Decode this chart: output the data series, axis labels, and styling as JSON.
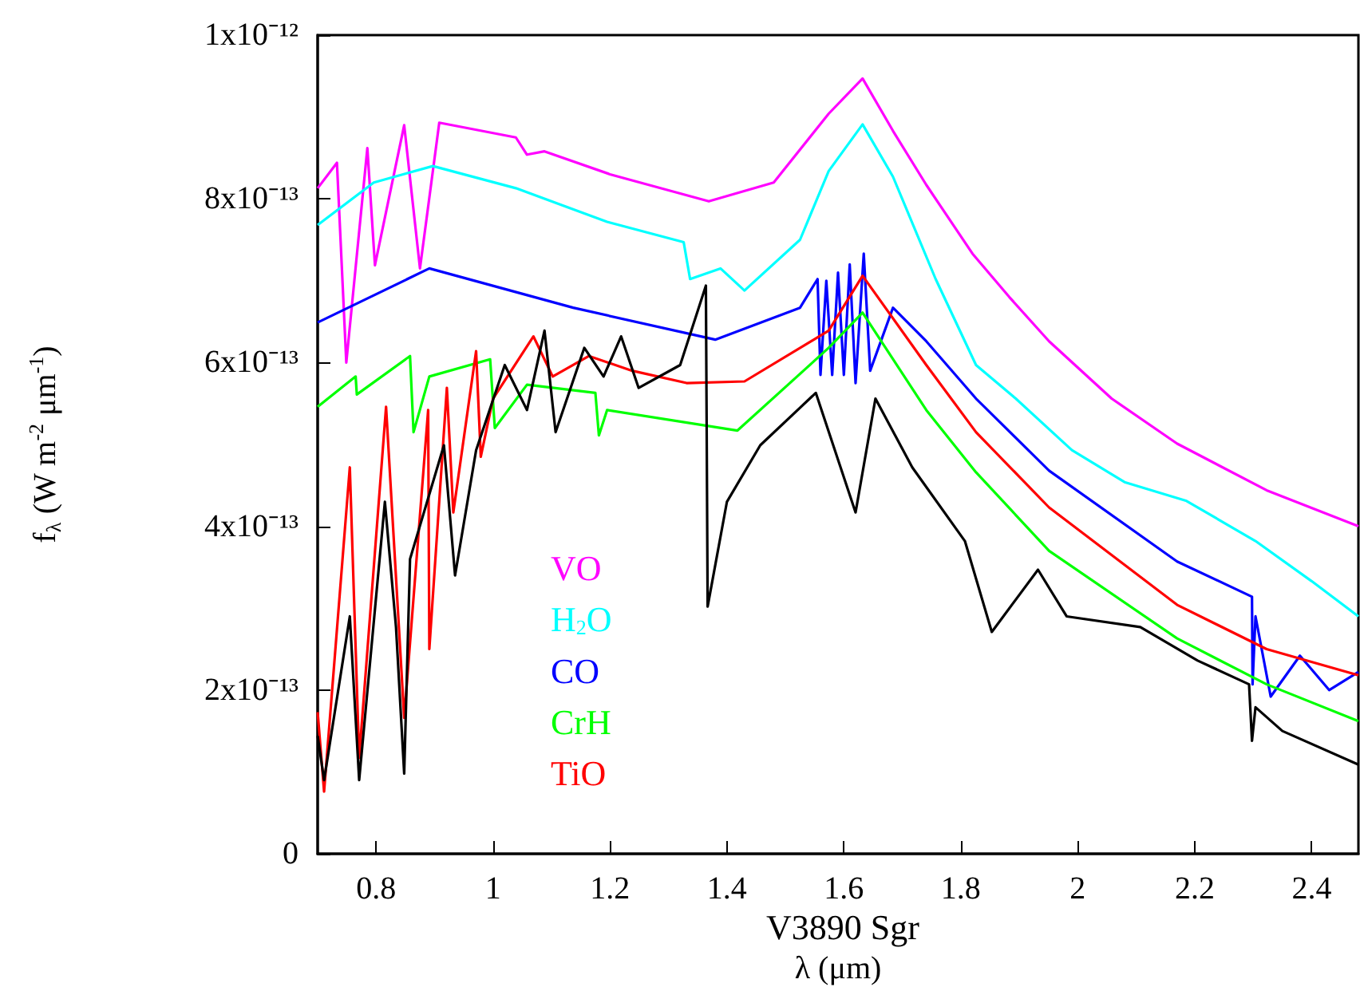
{
  "chart_data": {
    "type": "line",
    "xlabel": "λ (μm)",
    "ylabel": "f$_{λ}$ (W m$^{-2}$ μm$^{-1}$)",
    "xlim": [
      0.7,
      2.48
    ],
    "xticks": [
      0.8,
      1,
      1.2,
      1.4,
      1.6,
      1.8,
      2,
      2.2,
      2.4
    ],
    "ylim": [
      0,
      1e-12
    ],
    "yticks": [
      {
        "value": 0,
        "label": "0"
      },
      {
        "value": 2e-13,
        "label": "2x10⁻¹³"
      },
      {
        "value": 4e-13,
        "label": "4x10⁻¹³"
      },
      {
        "value": 6e-13,
        "label": "6x10⁻¹³"
      },
      {
        "value": 8e-13,
        "label": "8x10⁻¹³"
      },
      {
        "value": 1e-12,
        "label": "1x10⁻¹²"
      }
    ],
    "grid": false,
    "legend": "bottom left",
    "marker": "none",
    "series": [
      {
        "name": "VO",
        "color": "#ff00ff",
        "x": [
          0.7,
          0.733,
          0.749,
          0.785,
          0.798,
          0.848,
          0.875,
          0.908,
          1.039,
          1.058,
          1.088,
          1.2,
          1.369,
          1.48,
          1.574,
          1.632,
          1.684,
          1.741,
          1.82,
          1.883,
          1.951,
          2.058,
          2.17,
          2.323,
          2.48
        ],
        "values": [
          8.13e-13,
          8.44e-13,
          6e-13,
          8.62e-13,
          7.19e-13,
          8.9e-13,
          7.15e-13,
          8.93e-13,
          8.75e-13,
          8.54e-13,
          8.58e-13,
          8.3e-13,
          7.97e-13,
          8.2e-13,
          9.04e-13,
          9.47e-13,
          8.83e-13,
          8.17e-13,
          7.33e-13,
          6.8e-13,
          6.26e-13,
          5.56e-13,
          5.01e-13,
          4.44e-13,
          4e-13
        ]
      },
      {
        "name": "H$_{2}$O",
        "color": "#00ffff",
        "x": [
          0.7,
          0.796,
          0.897,
          1.039,
          1.195,
          1.326,
          1.337,
          1.389,
          1.43,
          1.525,
          1.574,
          1.632,
          1.684,
          1.757,
          1.826,
          1.894,
          1.99,
          2.08,
          2.186,
          2.304,
          2.4,
          2.48
        ],
        "values": [
          7.68e-13,
          8.2e-13,
          8.4e-13,
          8.13e-13,
          7.72e-13,
          7.47e-13,
          7.02e-13,
          7.15e-13,
          6.88e-13,
          7.5e-13,
          8.34e-13,
          8.91e-13,
          8.27e-13,
          7.02e-13,
          5.97e-13,
          5.56e-13,
          4.93e-13,
          4.54e-13,
          4.31e-13,
          3.82e-13,
          3.33e-13,
          2.9e-13
        ]
      },
      {
        "name": "CO",
        "color": "#0000ff",
        "x": [
          0.7,
          0.891,
          1.137,
          1.38,
          1.525,
          1.555,
          1.56,
          1.57,
          1.58,
          1.59,
          1.6,
          1.61,
          1.62,
          1.634,
          1.645,
          1.684,
          1.741,
          1.826,
          1.951,
          2.17,
          2.298,
          2.299,
          2.304,
          2.33,
          2.38,
          2.43,
          2.48
        ],
        "values": [
          6.49e-13,
          7.15e-13,
          6.67e-13,
          6.28e-13,
          6.67e-13,
          7.02e-13,
          5.85e-13,
          7e-13,
          5.85e-13,
          7.1e-13,
          5.85e-13,
          7.2e-13,
          5.75e-13,
          7.33e-13,
          5.9e-13,
          6.67e-13,
          6.26e-13,
          5.56e-13,
          4.68e-13,
          3.57e-13,
          3.14e-13,
          2.07e-13,
          2.9e-13,
          1.92e-13,
          2.42e-13,
          2e-13,
          2.22e-13
        ]
      },
      {
        "name": "CrH",
        "color": "#00ff00",
        "x": [
          0.7,
          0.765,
          0.767,
          0.858,
          0.864,
          0.891,
          0.995,
          1.003,
          1.058,
          1.175,
          1.181,
          1.195,
          1.418,
          1.574,
          1.632,
          1.741,
          1.826,
          1.951,
          2.17,
          2.323,
          2.48
        ],
        "values": [
          5.46e-13,
          5.83e-13,
          5.61e-13,
          6.08e-13,
          5.15e-13,
          5.83e-13,
          6.04e-13,
          5.2e-13,
          5.73e-13,
          5.63e-13,
          5.11e-13,
          5.42e-13,
          5.17e-13,
          6.18e-13,
          6.61e-13,
          5.42e-13,
          4.66e-13,
          3.7e-13,
          2.63e-13,
          2.07e-13,
          1.62e-13
        ]
      },
      {
        "name": "TiO",
        "color": "#ff0000",
        "x": [
          0.7,
          0.711,
          0.755,
          0.771,
          0.817,
          0.848,
          0.889,
          0.891,
          0.921,
          0.932,
          0.971,
          0.979,
          1.0,
          1.069,
          1.102,
          1.164,
          1.238,
          1.331,
          1.43,
          1.574,
          1.632,
          1.741,
          1.826,
          1.951,
          2.17,
          2.323,
          2.48
        ],
        "values": [
          1.73e-13,
          7.6e-14,
          4.72e-13,
          1.17e-13,
          5.46e-13,
          1.66e-13,
          5.42e-13,
          2.5e-13,
          5.69e-13,
          4.17e-13,
          6.14e-13,
          4.85e-13,
          5.56e-13,
          6.32e-13,
          5.83e-13,
          6.08e-13,
          5.9e-13,
          5.75e-13,
          5.77e-13,
          6.39e-13,
          7.06e-13,
          5.97e-13,
          5.15e-13,
          4.23e-13,
          3.04e-13,
          2.5e-13,
          2.18e-13
        ]
      },
      {
        "name": "V3890 Sgr",
        "color": "#000000",
        "x": [
          0.7,
          0.711,
          0.755,
          0.771,
          0.815,
          0.834,
          0.848,
          0.858,
          0.916,
          0.935,
          0.971,
          1.02,
          1.058,
          1.088,
          1.107,
          1.156,
          1.189,
          1.219,
          1.249,
          1.32,
          1.364,
          1.367,
          1.4,
          1.457,
          1.552,
          1.62,
          1.654,
          1.717,
          1.807,
          1.853,
          1.932,
          1.981,
          2.107,
          2.205,
          2.293,
          2.298,
          2.304,
          2.35,
          2.48
        ],
        "values": [
          1.44e-13,
          9e-14,
          2.9e-13,
          9e-14,
          4.3e-13,
          2.77e-13,
          9.8e-14,
          3.6e-13,
          4.99e-13,
          3.4e-13,
          4.93e-13,
          5.97e-13,
          5.42e-13,
          6.39e-13,
          5.15e-13,
          6.18e-13,
          5.83e-13,
          6.32e-13,
          5.69e-13,
          5.97e-13,
          6.94e-13,
          3.02e-13,
          4.3e-13,
          4.99e-13,
          5.63e-13,
          4.17e-13,
          5.56e-13,
          4.72e-13,
          3.82e-13,
          2.71e-13,
          3.47e-13,
          2.9e-13,
          2.77e-13,
          2.36e-13,
          2.07e-13,
          1.38e-13,
          1.79e-13,
          1.5e-13,
          1.09e-13
        ]
      }
    ]
  }
}
